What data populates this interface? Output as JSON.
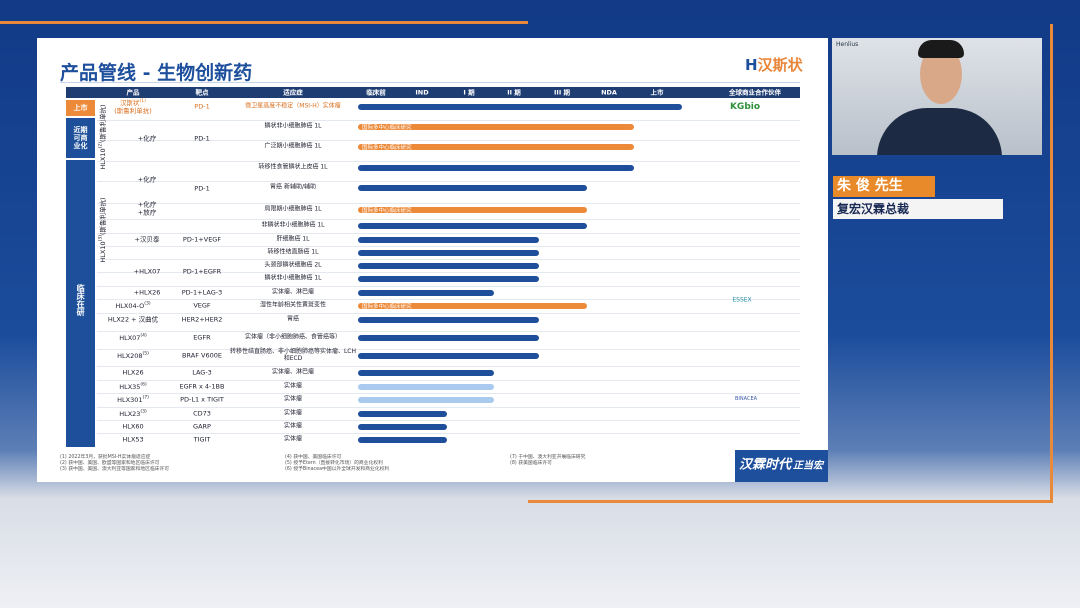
{
  "header": {
    "title": "产品管线 - 生物创新药",
    "logo": "汉斯状"
  },
  "columns": [
    "产品",
    "靶点",
    "适应症",
    "临床前",
    "IND",
    "I 期",
    "II 期",
    "III 期",
    "NDA",
    "上市",
    "全球商业合作伙伴"
  ],
  "sections": [
    "上市",
    "近期可商业化",
    "临床在研"
  ],
  "products": [
    {
      "name": "汉斯状",
      "note": "(1)",
      "sub": "(斯鲁利单抗)"
    },
    {
      "name": "HLX10",
      "note": "(2)",
      "sub": "(斯鲁利单抗)"
    },
    {
      "name": "HLX10",
      "note": "(3)",
      "sub": "(斯鲁利单抗)"
    },
    {
      "name": "HLX04-O",
      "note": "(3)"
    },
    {
      "name": "HLX22 + 汉曲优"
    },
    {
      "name": "HLX07",
      "note": "(4)"
    },
    {
      "name": "HLX208",
      "note": "(5)"
    },
    {
      "name": "HLX26"
    },
    {
      "name": "HLX35",
      "note": "(6)"
    },
    {
      "name": "HLX301",
      "note": "(7)"
    },
    {
      "name": "HLX23",
      "note": "(3)"
    },
    {
      "name": "HLX60"
    },
    {
      "name": "HLX53"
    }
  ],
  "combos": [
    "+化疗",
    "+化疗",
    "+化疗",
    "+放疗",
    "+汉贝泰",
    "+HLX07",
    "+HLX26"
  ],
  "targets": [
    "PD-1",
    "PD-1",
    "PD-1",
    "PD-1+VEGF",
    "PD-1+EGFR",
    "PD-1+LAG-3",
    "VEGF",
    "HER2+HER2",
    "EGFR",
    "BRAF V600E",
    "LAG-3",
    "EGFR x 4-1BB",
    "PD-L1 x TIGIT",
    "CD73",
    "GARP",
    "TIGIT"
  ],
  "rows": [
    {
      "indication": "微卫星高度不稳定（MSI-H）实体瘤",
      "stage": "上市",
      "color": "#1f4e9a"
    },
    {
      "indication": "鳞状非小细胞肺癌 1L",
      "stage": "NDA",
      "color": "#ec8a3a",
      "label": "国际多中心临床研究"
    },
    {
      "indication": "广泛期小细胞肺癌 1L",
      "stage": "NDA",
      "color": "#ec8a3a",
      "label": "国际多中心临床研究"
    },
    {
      "indication": "转移性食管鳞状上皮癌 1L",
      "stage": "NDA",
      "color": "#1f4e9a"
    },
    {
      "indication": "胃癌 新辅助/辅助",
      "stage": "III 期",
      "color": "#1f4e9a"
    },
    {
      "indication": "局限期小细胞肺癌 1L",
      "stage": "III 期",
      "color": "#ec8a3a",
      "label": "国际多中心临床研究"
    },
    {
      "indication": "非鳞状非小细胞肺癌 1L",
      "stage": "III 期",
      "color": "#1f4e9a"
    },
    {
      "indication": "肝细胞癌 1L",
      "stage": "II 期",
      "color": "#1f4e9a"
    },
    {
      "indication": "转移性结直肠癌 1L",
      "stage": "II 期",
      "color": "#1f4e9a"
    },
    {
      "indication": "头颈部鳞状细胞癌 2L",
      "stage": "II 期",
      "color": "#1f4e9a"
    },
    {
      "indication": "鳞状非小细胞肺癌 1L",
      "stage": "II 期",
      "color": "#1f4e9a"
    },
    {
      "indication": "实体瘤、淋巴瘤",
      "stage": "I 期",
      "color": "#1f4e9a"
    },
    {
      "indication": "湿性年龄相关性黄斑变性",
      "stage": "III 期",
      "color": "#ec8a3a",
      "label": "国际多中心临床研究"
    },
    {
      "indication": "胃癌",
      "stage": "II 期",
      "color": "#1f4e9a"
    },
    {
      "indication": "实体瘤（非小细胞肺癌、食管癌等）",
      "stage": "II 期",
      "color": "#1f4e9a"
    },
    {
      "indication": "转移性结直肠癌、非小细胞肺癌等实体瘤、LCH和ECD",
      "stage": "II 期",
      "color": "#1f4e9a"
    },
    {
      "indication": "实体瘤、淋巴瘤",
      "stage": "I 期",
      "color": "#1f4e9a"
    },
    {
      "indication": "实体瘤",
      "stage": "I 期",
      "color": "#a9c9ef"
    },
    {
      "indication": "实体瘤",
      "stage": "I 期",
      "color": "#a9c9ef"
    },
    {
      "indication": "实体瘤",
      "stage": "IND",
      "color": "#1f4e9a"
    },
    {
      "indication": "实体瘤",
      "stage": "IND",
      "color": "#1f4e9a"
    },
    {
      "indication": "实体瘤",
      "stage": "IND",
      "color": "#1f4e9a"
    }
  ],
  "partners": [
    "KGbio",
    "ESSEX",
    "BINACEA"
  ],
  "footnotes": [
    "(1) 2022年3月，获批MSI-H实体瘤适应症",
    "(2) 获中国、美国、欧盟等国家和地区临床许可",
    "(3) 获中国、美国、澳大利亚等国家和地区临床许可",
    "(4) 获中国、美国临床许可",
    "(5) 授予Etern（直接转化市场）的商业化权利",
    "(6) 授予Binacea中国以外全球开发和商业化权利",
    "(7) 于中国、澳大利亚开展临床研究",
    "(8) 获美国临床许可"
  ],
  "slogan": [
    "汉霖时代",
    "正当宏"
  ],
  "video": {
    "brand": "Henlius"
  },
  "speaker": {
    "name": "朱 俊 先生",
    "title": "复宏汉霖总裁"
  }
}
